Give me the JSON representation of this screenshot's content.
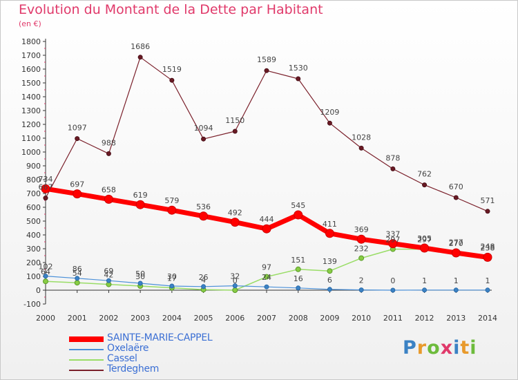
{
  "title": "Evolution du Montant de la Dette par Habitant",
  "subtitle": "(en €)",
  "logo": {
    "text": "Proxiti",
    "colors": [
      "#3b82c4",
      "#e89a2c",
      "#6dbb3c",
      "#e0396a",
      "#3b82c4",
      "#e89a2c",
      "#6dbb3c"
    ]
  },
  "chart_data": {
    "type": "line",
    "x": [
      "2000",
      "2001",
      "2002",
      "2003",
      "2004",
      "2005",
      "2006",
      "2007",
      "2008",
      "2009",
      "2010",
      "2011",
      "2012",
      "2013",
      "2014"
    ],
    "ylim": [
      -100,
      1800
    ],
    "yticks": [
      -100,
      0,
      100,
      200,
      300,
      400,
      500,
      600,
      700,
      800,
      900,
      1000,
      1100,
      1200,
      1300,
      1400,
      1500,
      1600,
      1700,
      1800
    ],
    "grid": false,
    "legend": "bottom-left",
    "series": [
      {
        "name": "SAINTE-MARIE-CAPPEL",
        "color": "#ff0000",
        "values": [
          734,
          697,
          658,
          619,
          579,
          536,
          492,
          444,
          545,
          411,
          369,
          337,
          305,
          270,
          238
        ]
      },
      {
        "name": "Oxelaëre",
        "color": "#4a90d9",
        "values": [
          102,
          86,
          69,
          50,
          30,
          26,
          32,
          24,
          16,
          6,
          2,
          0,
          1,
          1,
          1
        ]
      },
      {
        "name": "Cassel",
        "color": "#99dd66",
        "values": [
          64,
          54,
          42,
          30,
          17,
          4,
          0,
          97,
          151,
          139,
          232,
          297,
          297,
          277,
          248
        ]
      },
      {
        "name": "Terdeghem",
        "color": "#7a1f2a",
        "values": [
          667,
          1097,
          988,
          1686,
          1519,
          1094,
          1150,
          1589,
          1530,
          1209,
          1028,
          878,
          762,
          670,
          571
        ]
      }
    ]
  }
}
